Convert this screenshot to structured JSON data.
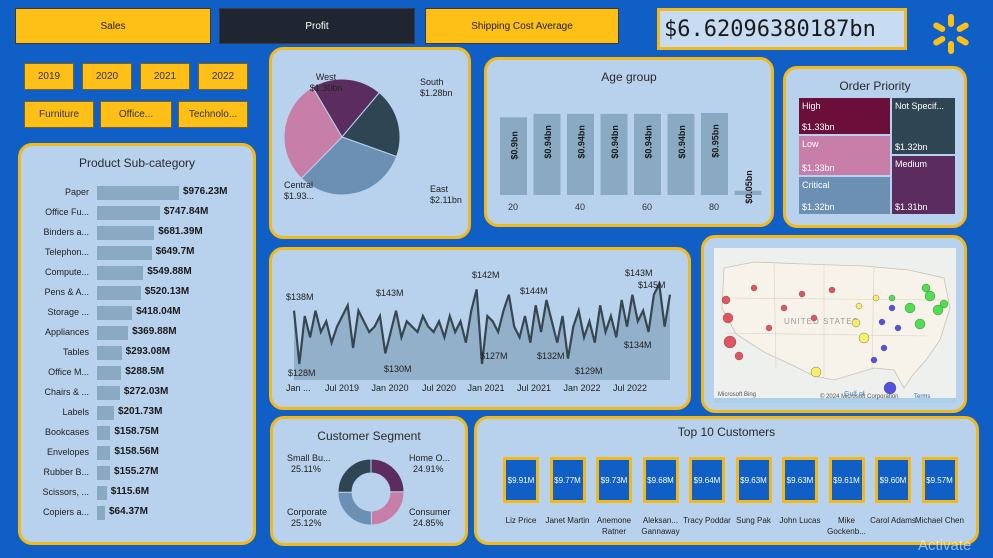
{
  "tabs": [
    {
      "label": "Sales"
    },
    {
      "label": "Profit"
    },
    {
      "label": "Shipping Cost Average"
    }
  ],
  "total_value": "$6.62096380187bn",
  "year_filters": [
    "2019",
    "2020",
    "2021",
    "2022"
  ],
  "category_filters": [
    "Furniture",
    "Office...",
    "Technolo..."
  ],
  "colors": {
    "background": "#0f5fc6",
    "accent": "#f2b918",
    "button": "#fec016",
    "panel": "#b8d1ec",
    "bar": "#8aaac4",
    "line": "#3a4a58"
  },
  "product_subcategory": {
    "title": "Product Sub-category",
    "items": [
      {
        "name": "Paper",
        "value": "$976.23M"
      },
      {
        "name": "Office Fu...",
        "value": "$747.84M"
      },
      {
        "name": "Binders a...",
        "value": "$681.39M"
      },
      {
        "name": "Telephon...",
        "value": "$649.7M"
      },
      {
        "name": "Compute...",
        "value": "$549.88M"
      },
      {
        "name": "Pens & A...",
        "value": "$520.13M"
      },
      {
        "name": "Storage ...",
        "value": "$418.04M"
      },
      {
        "name": "Appliances",
        "value": "$369.88M"
      },
      {
        "name": "Tables",
        "value": "$293.08M"
      },
      {
        "name": "Office M...",
        "value": "$288.5M"
      },
      {
        "name": "Chairs & ...",
        "value": "$272.03M"
      },
      {
        "name": "Labels",
        "value": "$201.73M"
      },
      {
        "name": "Bookcases",
        "value": "$158.75M"
      },
      {
        "name": "Envelopes",
        "value": "$158.56M"
      },
      {
        "name": "Rubber B...",
        "value": "$155.27M"
      },
      {
        "name": "Scissors, ...",
        "value": "$115.6M"
      },
      {
        "name": "Copiers a...",
        "value": "$64.37M"
      }
    ]
  },
  "region_pie": {
    "slices": [
      {
        "name": "West",
        "value_label": "$1.30bn",
        "value": 1.3,
        "color": "#5b2d5e"
      },
      {
        "name": "South",
        "value_label": "$1.28bn",
        "value": 1.28,
        "color": "#2f4554"
      },
      {
        "name": "East",
        "value_label": "$2.11bn",
        "value": 2.11,
        "color": "#6c90b4"
      },
      {
        "name": "Central",
        "value_label": "$1.93...",
        "value": 1.93,
        "color": "#c77ea8"
      }
    ]
  },
  "age_group": {
    "title": "Age group",
    "bars": [
      {
        "label": "$0.9bn",
        "value": 0.9
      },
      {
        "label": "$0.94bn",
        "value": 0.94
      },
      {
        "label": "$0.94bn",
        "value": 0.94
      },
      {
        "label": "$0.94bn",
        "value": 0.94
      },
      {
        "label": "$0.94bn",
        "value": 0.94
      },
      {
        "label": "$0.94bn",
        "value": 0.94
      },
      {
        "label": "$0.95bn",
        "value": 0.95
      },
      {
        "label": "$0.05bn",
        "value": 0.05
      }
    ],
    "axis_ticks": [
      "20",
      "40",
      "60",
      "80"
    ]
  },
  "order_priority": {
    "title": "Order Priority",
    "cells": [
      {
        "name": "High",
        "value": "$1.33bn",
        "color": "#6b0f3a"
      },
      {
        "name": "Not Specif...",
        "value": "$1.32bn",
        "color": "#2f4554"
      },
      {
        "name": "Low",
        "value": "$1.33bn",
        "color": "#c77ea8"
      },
      {
        "name": "Medium",
        "value": "$1.31bn",
        "color": "#5b2d5e"
      },
      {
        "name": "Critical",
        "value": "$1.32bn",
        "color": "#6c90b4"
      }
    ]
  },
  "timeline": {
    "values": [
      138,
      128,
      137,
      133,
      138,
      134,
      136,
      132,
      135,
      137,
      139,
      131,
      138,
      136,
      134,
      135,
      137,
      130,
      134,
      138,
      133,
      136,
      135,
      134,
      137,
      135,
      134,
      136,
      133,
      137,
      134,
      136,
      132,
      138,
      142,
      128,
      137,
      136,
      134,
      138,
      141,
      135,
      133,
      137,
      132,
      139,
      134,
      140,
      136,
      132,
      137,
      129,
      135,
      138,
      133,
      136,
      132,
      139,
      134,
      137,
      133,
      140,
      135,
      141,
      136,
      138,
      134,
      141,
      143,
      135,
      141
    ],
    "x_labels": [
      "Jan ...",
      "Jul 2019",
      "Jan 2020",
      "Jul 2020",
      "Jan 2021",
      "Jul 2021",
      "Jan 2022",
      "Jul 2022"
    ],
    "annotations": [
      "$138M",
      "$128M",
      "$143M",
      "$130M",
      "$142M",
      "$127M",
      "$144M",
      "$132M",
      "$129M",
      "$143M",
      "$134M",
      "$145M"
    ]
  },
  "map": {
    "country_label": "UNITED STATES",
    "attribution": "© 2024 Microsoft Corporation",
    "terms": "Terms",
    "brand": "Microsoft Bing",
    "sea_label": "Gulf of\nMexico"
  },
  "customer_segment": {
    "title": "Customer Segment",
    "slices": [
      {
        "name": "Home O...",
        "pct": "24.91%",
        "value": 24.91,
        "color": "#5b2d5e"
      },
      {
        "name": "Consumer",
        "pct": "24.85%",
        "value": 24.85,
        "color": "#c77ea8"
      },
      {
        "name": "Corporate",
        "pct": "25.12%",
        "value": 25.12,
        "color": "#6c90b4"
      },
      {
        "name": "Small Bu...",
        "pct": "25.11%",
        "value": 25.11,
        "color": "#2f4554"
      }
    ]
  },
  "top_customers": {
    "title": "Top 10 Customers",
    "items": [
      {
        "value": "$9.91M",
        "name": "Liz Price"
      },
      {
        "value": "$9.77M",
        "name": "Janet Martin"
      },
      {
        "value": "$9.73M",
        "name": "Anemone Ratner"
      },
      {
        "value": "$9.68M",
        "name": "Aleksan... Gannaway"
      },
      {
        "value": "$9.64M",
        "name": "Tracy Poddar"
      },
      {
        "value": "$9.63M",
        "name": "Sung Pak"
      },
      {
        "value": "$9.63M",
        "name": "John Lucas"
      },
      {
        "value": "$9.61M",
        "name": "Mike Gockenb..."
      },
      {
        "value": "$9.60M",
        "name": "Carol Adams"
      },
      {
        "value": "$9.57M",
        "name": "Michael Chen"
      }
    ]
  },
  "watermark": "Activate"
}
